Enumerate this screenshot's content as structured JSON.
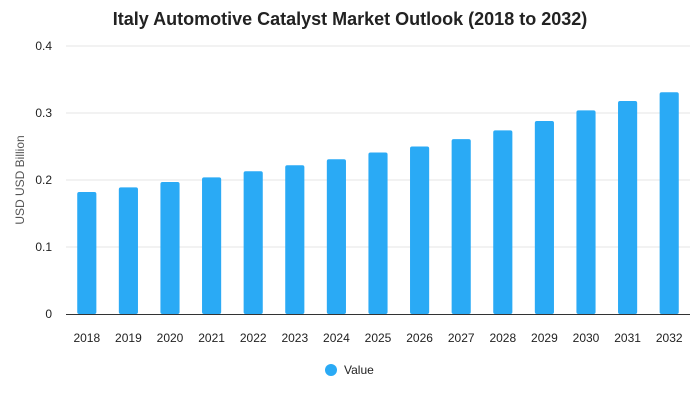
{
  "chart_data": {
    "type": "bar",
    "title": "Italy Automotive Catalyst Market Outlook (2018 to 2032)",
    "xlabel": "",
    "ylabel": "USD USD Billion",
    "categories": [
      "2018",
      "2019",
      "2020",
      "2021",
      "2022",
      "2023",
      "2024",
      "2025",
      "2026",
      "2027",
      "2028",
      "2029",
      "2030",
      "2031",
      "2032"
    ],
    "series": [
      {
        "name": "Value",
        "color": "#2aaaf5",
        "values": [
          0.182,
          0.189,
          0.197,
          0.204,
          0.213,
          0.222,
          0.231,
          0.241,
          0.25,
          0.261,
          0.274,
          0.288,
          0.304,
          0.318,
          0.331
        ]
      }
    ],
    "ylim": [
      0,
      0.4
    ],
    "yticks": [
      0,
      0.1,
      0.2,
      0.3,
      0.4
    ],
    "ytick_labels": [
      "0",
      "0.1",
      "0.2",
      "0.3",
      "0.4"
    ],
    "grid": true,
    "legend_position": "bottom-center"
  }
}
